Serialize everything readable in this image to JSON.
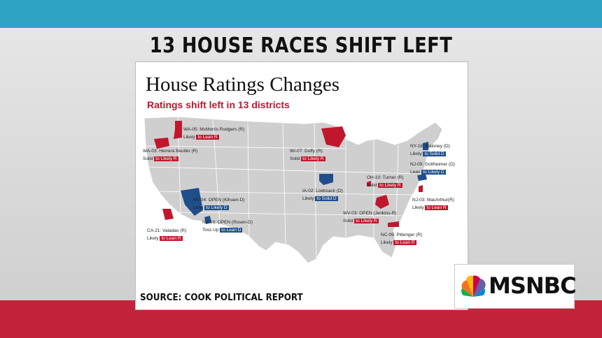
{
  "headline": "13 HOUSE RACES SHIFT LEFT",
  "map": {
    "title": "House Ratings Changes",
    "subtitle": "Ratings shift left in 13 districts",
    "source": "SOURCE: COOK POLITICAL REPORT",
    "colors": {
      "lean_r": "#c0172d",
      "lean_d": "#1f4e8a",
      "land": "#cfcfcf",
      "borders": "#ffffff"
    },
    "races": [
      {
        "label": "WA-05: McMorris Rodgers (R)",
        "from": "Likely",
        "to": "to Lean R",
        "color": "red"
      },
      {
        "label": "WA-03: Herrera Beutler (R)",
        "from": "Solid",
        "to": "to Likely R",
        "color": "red"
      },
      {
        "label": "WI-07: Duffy (R)",
        "from": "Solid",
        "to": "to Likely R",
        "color": "red"
      },
      {
        "label": "NY-18: Maloney (D)",
        "from": "Likely",
        "to": "to Solid D",
        "color": "blue"
      },
      {
        "label": "NJ-05: Gottheimer (D)",
        "from": "Lean",
        "to": "to Likely D",
        "color": "blue"
      },
      {
        "label": "OH-10: Turner (R)",
        "from": "Solid",
        "to": "to Likely R",
        "color": "red"
      },
      {
        "label": "IA-02: Loebsack (D)",
        "from": "Likely",
        "to": "to Solid D",
        "color": "blue"
      },
      {
        "label": "NV-04: OPEN (Kihuen-D)",
        "from": "Lean",
        "to": "to Likely D",
        "color": "blue"
      },
      {
        "label": "NJ-03: MacArthur(R)",
        "from": "Likely",
        "to": "to Lean R",
        "color": "red"
      },
      {
        "label": "WV-03: OPEN (Jenkins-R)",
        "from": "Solid",
        "to": "to Likely R",
        "color": "red"
      },
      {
        "label": "NV-03: OPEN (Rosen-D)",
        "from": "Toss Up",
        "to": "to Lean D",
        "color": "blue"
      },
      {
        "label": "CA-21: Valadao (R)",
        "from": "Likely",
        "to": "to Lean R",
        "color": "red"
      },
      {
        "label": "NC-09: Pittenger (R)",
        "from": "Likely",
        "to": "to Lean R",
        "color": "red"
      }
    ]
  },
  "logo": {
    "text": "MSNBC",
    "peacock_colors": [
      "#f37021",
      "#fcb711",
      "#cc004c",
      "#6460aa",
      "#0089d0",
      "#0db14b"
    ]
  }
}
